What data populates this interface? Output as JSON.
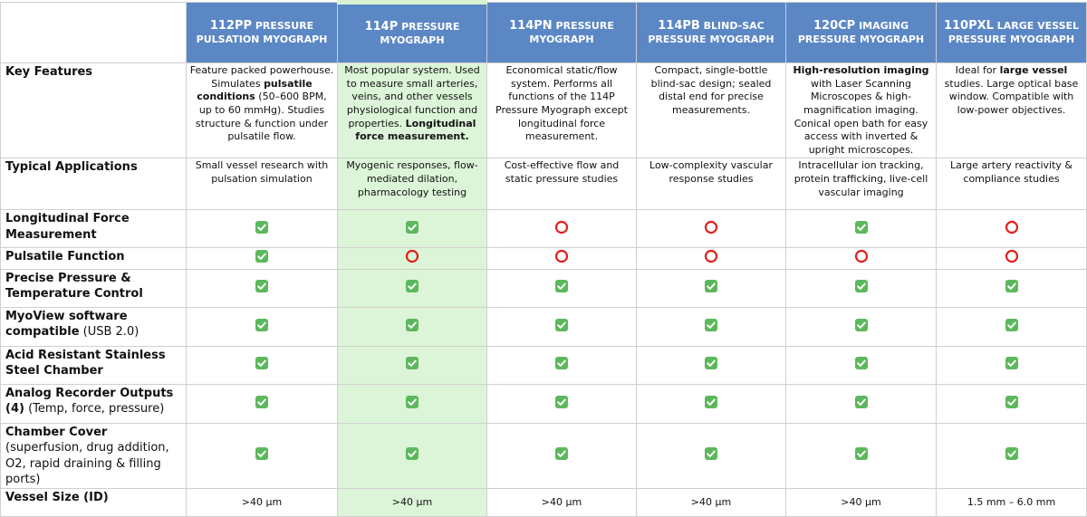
{
  "header": {
    "columns": [
      {
        "model": "112PP",
        "name": "PRESSURE PULSATION MYOGRAPH"
      },
      {
        "model": "114P",
        "name": "PRESSURE MYOGRAPH"
      },
      {
        "model": "114PN",
        "name": "PRESSURE MYOGRAPH"
      },
      {
        "model": "114PB",
        "name": "BLIND-SAC PRESSURE MYOGRAPH"
      },
      {
        "model": "120CP",
        "name": "IMAGING PRESSURE MYOGRAPH"
      },
      {
        "model": "110PXL",
        "name": "LARGE VESSEL PRESSURE MYOGRAPH"
      }
    ]
  },
  "rows": [
    {
      "label": [
        {
          "text": "Key Features",
          "bold": true
        }
      ],
      "cells": [
        [
          {
            "text": "Feature packed powerhouse. Simulates "
          },
          {
            "text": "pulsatile conditions",
            "bold": true
          },
          {
            "text": " (50–600 BPM, up to 60 mmHg). Studies structure & function under pulsatile flow."
          }
        ],
        [
          {
            "text": "Most popular system. Used to measure small arteries, veins, and other vessels physiological function and properties. "
          },
          {
            "text": "Longitudinal force measurement.",
            "bold": true
          }
        ],
        [
          {
            "text": "Economical static/flow system. Performs all functions of the 114P Pressure Myograph except longitudinal force measurement."
          }
        ],
        [
          {
            "text": "Compact, single-bottle blind-sac design; sealed distal end for precise measurements."
          }
        ],
        [
          {
            "text": "High-resolution imaging",
            "bold": true
          },
          {
            "text": " with Laser Scanning Microscopes & high-magnification imaging. Conical open bath for easy access with inverted & upright microscopes."
          }
        ],
        [
          {
            "text": "Ideal for "
          },
          {
            "text": "large vessel",
            "bold": true
          },
          {
            "text": " studies. Large optical base window. Compatible with low-power objectives."
          }
        ]
      ]
    },
    {
      "label": [
        {
          "text": "Typical Applications",
          "bold": true
        }
      ],
      "cells": [
        [
          {
            "text": "Small vessel research with pulsation simulation"
          }
        ],
        [
          {
            "text": "Myogenic responses, flow-mediated dilation, pharmacology testing"
          }
        ],
        [
          {
            "text": "Cost-effective flow and static pressure studies"
          }
        ],
        [
          {
            "text": "Low-complexity vascular response studies"
          }
        ],
        [
          {
            "text": "Intracellular ion tracking, protein trafficking, live-cell vascular imaging"
          }
        ],
        [
          {
            "text": "Large artery reactivity & compliance studies"
          }
        ]
      ]
    },
    {
      "label": [
        {
          "text": "Longitudinal Force Measurement",
          "bold": true
        }
      ],
      "cells": [
        true,
        true,
        false,
        false,
        true,
        false
      ]
    },
    {
      "label": [
        {
          "text": "Pulsatile Function",
          "bold": true
        }
      ],
      "cells": [
        true,
        false,
        false,
        false,
        false,
        false
      ]
    },
    {
      "label": [
        {
          "text": "Precise Pressure & Temperature Control",
          "bold": true
        }
      ],
      "cells": [
        true,
        true,
        true,
        true,
        true,
        true
      ]
    },
    {
      "label": [
        {
          "text": "MyoView software compatible",
          "bold": true
        },
        {
          "text": " (USB 2.0)"
        }
      ],
      "cells": [
        true,
        true,
        true,
        true,
        true,
        true
      ]
    },
    {
      "label": [
        {
          "text": "Acid Resistant Stainless Steel Chamber",
          "bold": true
        }
      ],
      "cells": [
        true,
        true,
        true,
        true,
        true,
        true
      ]
    },
    {
      "label": [
        {
          "text": "Analog Recorder Outputs (4)",
          "bold": true
        },
        {
          "text": " (Temp, force, pressure)"
        }
      ],
      "cells": [
        true,
        true,
        true,
        true,
        true,
        true
      ]
    },
    {
      "label": [
        {
          "text": "Chamber Cover",
          "bold": true
        },
        {
          "text": " (superfusion, drug addition, O2, rapid draining & filling ports)"
        }
      ],
      "cells": [
        true,
        true,
        true,
        true,
        true,
        true
      ]
    },
    {
      "label": [
        {
          "text": "Vessel Size (ID)",
          "bold": true
        }
      ],
      "cells": [
        [
          {
            "text": ">40 µm"
          }
        ],
        [
          {
            "text": ">40 µm"
          }
        ],
        [
          {
            "text": ">40 µm"
          }
        ],
        [
          {
            "text": ">40 µm"
          }
        ],
        [
          {
            "text": ">40 µm"
          }
        ],
        [
          {
            "text": "1.5 mm – 6.0 mm"
          }
        ]
      ]
    }
  ]
}
